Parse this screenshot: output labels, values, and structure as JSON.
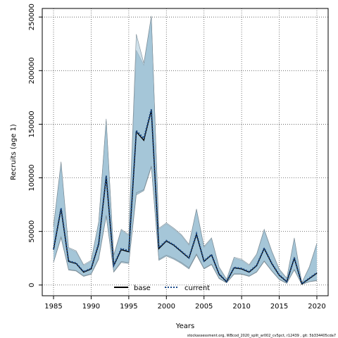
{
  "chart_data": {
    "type": "line",
    "title": "",
    "xlabel": "Years",
    "ylabel": "Recruits (age 1)",
    "xlim": [
      1983.5,
      2021.5
    ],
    "ylim": [
      -10000,
      258000
    ],
    "grid": true,
    "x_ticks": [
      1985,
      1990,
      1995,
      2000,
      2005,
      2010,
      2015,
      2020
    ],
    "x_tick_labels": [
      "1985",
      "1990",
      "1995",
      "2000",
      "2005",
      "2010",
      "2015",
      "2020"
    ],
    "y_ticks": [
      0,
      50000,
      100000,
      150000,
      200000,
      250000
    ],
    "y_tick_labels": [
      "0",
      "50000",
      "100000",
      "150000",
      "200000",
      "250000"
    ],
    "legend_position": "bottom",
    "x": [
      1985,
      1986,
      1987,
      1988,
      1989,
      1990,
      1991,
      1992,
      1993,
      1994,
      1995,
      1996,
      1997,
      1998,
      1999,
      2000,
      2001,
      2002,
      2003,
      2004,
      2005,
      2006,
      2007,
      2008,
      2009,
      2010,
      2011,
      2012,
      2013,
      2014,
      2015,
      2016,
      2017,
      2018,
      2019,
      2020
    ],
    "series": [
      {
        "name": "base",
        "color": "#000000",
        "line_style": "solid",
        "values": [
          33000,
          71000,
          22000,
          20000,
          12000,
          15000,
          38000,
          101000,
          18000,
          33000,
          31000,
          143000,
          135000,
          163000,
          34000,
          41000,
          37000,
          31000,
          25000,
          47000,
          22000,
          28000,
          10000,
          3000,
          16000,
          15000,
          12000,
          18000,
          34000,
          20000,
          9000,
          3000,
          25000,
          1000,
          6000,
          11000
        ],
        "ci_lower": [
          21000,
          44000,
          14000,
          13000,
          8000,
          10000,
          24000,
          64000,
          12000,
          21000,
          20000,
          84000,
          88000,
          110000,
          23000,
          27000,
          24000,
          20000,
          15000,
          28000,
          15000,
          19000,
          6000,
          2000,
          10000,
          10000,
          8000,
          12000,
          22000,
          13000,
          5000,
          1500,
          14000,
          500,
          3000,
          4000
        ],
        "ci_upper": [
          54000,
          113000,
          34000,
          31000,
          18000,
          22000,
          58000,
          153000,
          27000,
          51000,
          46000,
          219000,
          205000,
          250000,
          52000,
          57000,
          52000,
          46000,
          37000,
          70000,
          35000,
          43000,
          16000,
          5000,
          25000,
          23000,
          18000,
          28000,
          51000,
          31000,
          14000,
          6000,
          43000,
          2000,
          16000,
          38000
        ]
      },
      {
        "name": "current",
        "color": "#1a4a8a",
        "line_style": "dotted",
        "values": [
          33500,
          72000,
          22500,
          20500,
          12500,
          15500,
          39000,
          102000,
          18500,
          34000,
          32000,
          144000,
          137000,
          164000,
          35000,
          41500,
          37500,
          31500,
          25500,
          48000,
          22500,
          28500,
          10500,
          3200,
          16500,
          15500,
          12500,
          18500,
          34500,
          20500,
          9500,
          3200,
          25500,
          1200,
          6500,
          11500
        ],
        "ci_lower": [
          21500,
          45000,
          14500,
          13500,
          8500,
          10500,
          25000,
          65000,
          12500,
          22000,
          21000,
          86000,
          89000,
          111000,
          24000,
          28000,
          25000,
          21000,
          16000,
          29000,
          15500,
          19500,
          6500,
          2200,
          10500,
          10500,
          8500,
          12500,
          22500,
          13500,
          5500,
          1700,
          14500,
          600,
          3200,
          4500
        ],
        "ci_upper": [
          55000,
          115000,
          35000,
          32000,
          19000,
          23000,
          59000,
          155000,
          28000,
          52000,
          47000,
          234000,
          207000,
          251000,
          53000,
          58000,
          53000,
          47000,
          38000,
          71000,
          36000,
          44000,
          17000,
          5500,
          26000,
          24000,
          19000,
          29000,
          52000,
          32000,
          15000,
          6500,
          44000,
          2200,
          17000,
          39000
        ]
      }
    ],
    "band_color": "#a5c6d8",
    "band_edge_color": "#7a8a94"
  },
  "footnote": "stockassessment.org,  WBcod_2020_split_ar002_cv5pct,  r12439 ,  git: 5b334405cda7"
}
